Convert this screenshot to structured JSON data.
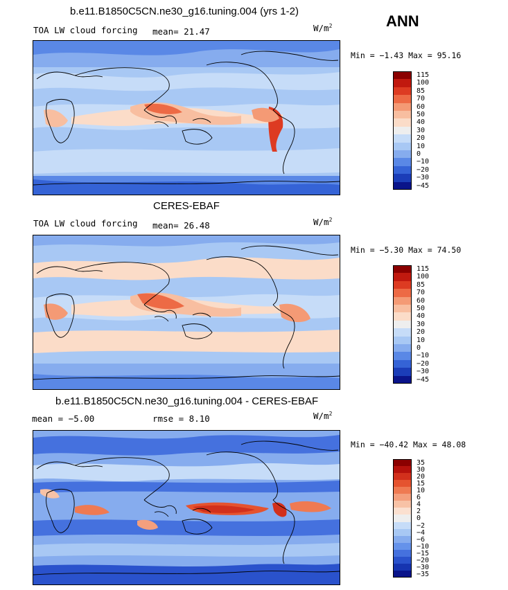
{
  "season": "ANN",
  "panels": [
    {
      "title": "b.e11.B1850C5CN.ne30_g16.tuning.004 (yrs 1-2)",
      "left_label": "TOA LW cloud forcing",
      "center_label": "mean=  21.47",
      "units": "W/m",
      "units_sup": "2",
      "minmax": "Min =  −1.43 Max =  95.16",
      "colorbar_ticks": [
        "115",
        "100",
        "85",
        "70",
        "60",
        "50",
        "40",
        "30",
        "20",
        "10",
        "0",
        "−10",
        "−20",
        "−30",
        "−45"
      ],
      "colors": [
        "#8b0000",
        "#c1190f",
        "#dd3b22",
        "#ed6a45",
        "#f49a75",
        "#f8bea0",
        "#fbdcc8",
        "#eeeeee",
        "#c6dcf8",
        "#a8c8f4",
        "#86acee",
        "#5a88e6",
        "#3563d6",
        "#1b3db8",
        "#0a148a"
      ]
    },
    {
      "title": "CERES-EBAF",
      "left_label": "TOA LW cloud forcing",
      "center_label": "mean=  26.48",
      "units": "W/m",
      "units_sup": "2",
      "minmax": "Min =  −5.30 Max =  74.50",
      "colorbar_ticks": [
        "115",
        "100",
        "85",
        "70",
        "60",
        "50",
        "40",
        "30",
        "20",
        "10",
        "0",
        "−10",
        "−20",
        "−30",
        "−45"
      ],
      "colors": [
        "#8b0000",
        "#c1190f",
        "#dd3b22",
        "#ed6a45",
        "#f49a75",
        "#f8bea0",
        "#fbdcc8",
        "#eeeeee",
        "#c6dcf8",
        "#a8c8f4",
        "#86acee",
        "#5a88e6",
        "#3563d6",
        "#1b3db8",
        "#0a148a"
      ]
    },
    {
      "title": "b.e11.B1850C5CN.ne30_g16.tuning.004 - CERES-EBAF",
      "left_label": "mean =   −5.00",
      "center_label": "rmse =    8.10",
      "units": "W/m",
      "units_sup": "2",
      "minmax": "Min = −40.42 Max =  48.08",
      "colorbar_ticks": [
        "35",
        "30",
        "20",
        "15",
        "10",
        "6",
        "4",
        "2",
        "0",
        "−2",
        "−4",
        "−6",
        "−10",
        "−15",
        "−20",
        "−30",
        "−35"
      ],
      "colors": [
        "#8b0000",
        "#b5110c",
        "#d2301c",
        "#e5532f",
        "#ef7a52",
        "#f49f7d",
        "#f8c2a6",
        "#fbe0d0",
        "#eeeeee",
        "#c6dcf8",
        "#a8c8f4",
        "#86acee",
        "#6592ea",
        "#4571de",
        "#2a52cc",
        "#1634b0",
        "#0a148a"
      ]
    }
  ]
}
